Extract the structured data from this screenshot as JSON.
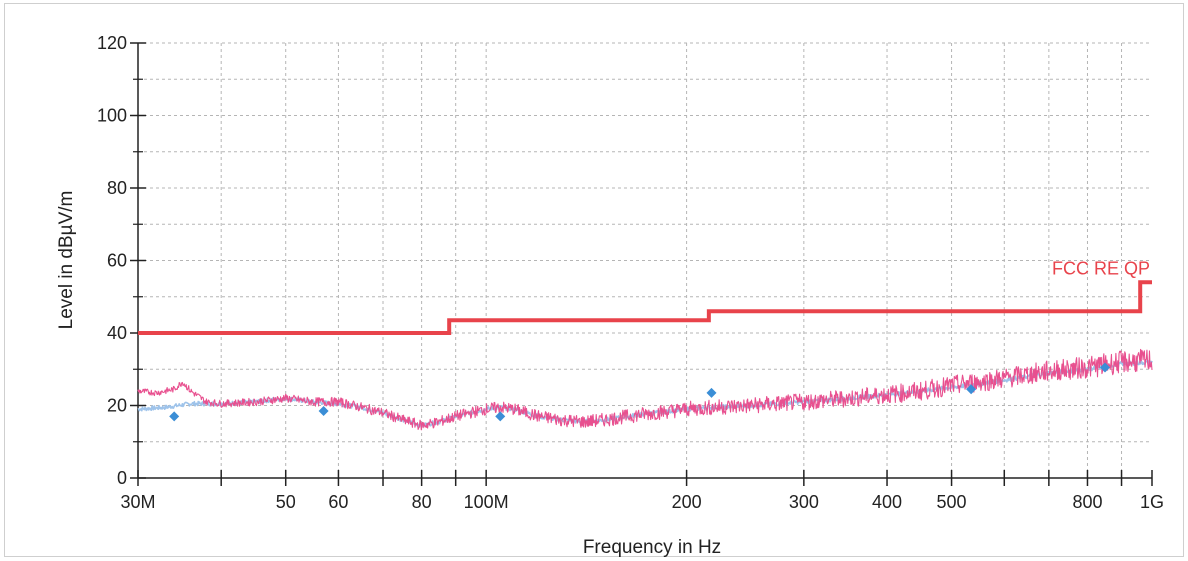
{
  "chart_data": {
    "type": "line",
    "title": "",
    "xlabel": "Frequency in Hz",
    "ylabel": "Level in dBµV/m",
    "xscale": "log",
    "xlim": [
      30000000,
      1000000000
    ],
    "ylim": [
      0,
      120
    ],
    "grid": true,
    "x_tick_labels": [
      {
        "value": 30000000,
        "label": "30M"
      },
      {
        "value": 50000000,
        "label": "50"
      },
      {
        "value": 60000000,
        "label": "60"
      },
      {
        "value": 80000000,
        "label": "80"
      },
      {
        "value": 100000000,
        "label": "100M"
      },
      {
        "value": 200000000,
        "label": "200"
      },
      {
        "value": 300000000,
        "label": "300"
      },
      {
        "value": 400000000,
        "label": "400"
      },
      {
        "value": 500000000,
        "label": "500"
      },
      {
        "value": 800000000,
        "label": "800"
      },
      {
        "value": 1000000000,
        "label": "1G"
      }
    ],
    "x_minor_ticks": [
      40000000,
      70000000,
      90000000,
      600000000,
      700000000,
      900000000
    ],
    "y_ticks": [
      0,
      20,
      40,
      60,
      80,
      100,
      120
    ],
    "y_minor_ticks": [
      10,
      30,
      50,
      70,
      90,
      110
    ],
    "limit_line": {
      "name": "FCC RE QP",
      "color": "#e8434b",
      "points": [
        [
          30000000,
          40
        ],
        [
          88000000,
          40
        ],
        [
          88000000,
          43.5
        ],
        [
          216000000,
          43.5
        ],
        [
          216000000,
          46
        ],
        [
          960000000,
          46
        ],
        [
          960000000,
          54
        ],
        [
          1000000000,
          54
        ]
      ]
    },
    "series": [
      {
        "color": "#9ec3ea",
        "points": [
          [
            30000000,
            19
          ],
          [
            33000000,
            19.5
          ],
          [
            36000000,
            20.5
          ],
          [
            40000000,
            20.5
          ],
          [
            45000000,
            21
          ],
          [
            50000000,
            22
          ],
          [
            55000000,
            21
          ],
          [
            60000000,
            20.5
          ],
          [
            65000000,
            19.5
          ],
          [
            70000000,
            18
          ],
          [
            75000000,
            16
          ],
          [
            80000000,
            14.5
          ],
          [
            85000000,
            15.5
          ],
          [
            90000000,
            17
          ],
          [
            100000000,
            19
          ],
          [
            105000000,
            19.5
          ],
          [
            110000000,
            19
          ],
          [
            120000000,
            17
          ],
          [
            130000000,
            16
          ],
          [
            140000000,
            15.5
          ],
          [
            150000000,
            16
          ],
          [
            170000000,
            17.5
          ],
          [
            200000000,
            19
          ],
          [
            220000000,
            19.5
          ],
          [
            250000000,
            20
          ],
          [
            300000000,
            21
          ],
          [
            350000000,
            22
          ],
          [
            400000000,
            23
          ],
          [
            450000000,
            24
          ],
          [
            500000000,
            25
          ],
          [
            550000000,
            26
          ],
          [
            600000000,
            27
          ],
          [
            650000000,
            28
          ],
          [
            700000000,
            29
          ],
          [
            800000000,
            30
          ],
          [
            900000000,
            31.5
          ],
          [
            1000000000,
            32
          ]
        ]
      },
      {
        "color": "#e8508f",
        "points": [
          [
            30000000,
            24
          ],
          [
            32000000,
            23.5
          ],
          [
            34000000,
            24.5
          ],
          [
            35000000,
            26.5
          ],
          [
            36000000,
            24
          ],
          [
            38000000,
            21
          ],
          [
            40000000,
            20.5
          ],
          [
            45000000,
            21
          ],
          [
            50000000,
            22
          ],
          [
            55000000,
            21
          ],
          [
            60000000,
            21
          ],
          [
            65000000,
            19.5
          ],
          [
            70000000,
            18
          ],
          [
            75000000,
            16
          ],
          [
            80000000,
            14.5
          ],
          [
            85000000,
            15.5
          ],
          [
            90000000,
            17
          ],
          [
            100000000,
            19
          ],
          [
            105000000,
            19.5
          ],
          [
            110000000,
            19
          ],
          [
            120000000,
            17
          ],
          [
            130000000,
            16
          ],
          [
            140000000,
            15.5
          ],
          [
            150000000,
            16
          ],
          [
            170000000,
            17.5
          ],
          [
            200000000,
            19
          ],
          [
            220000000,
            19.5
          ],
          [
            250000000,
            20
          ],
          [
            300000000,
            21
          ],
          [
            350000000,
            22
          ],
          [
            400000000,
            23
          ],
          [
            450000000,
            24
          ],
          [
            500000000,
            25.5
          ],
          [
            550000000,
            26.5
          ],
          [
            600000000,
            27.5
          ],
          [
            650000000,
            28.5
          ],
          [
            700000000,
            29.5
          ],
          [
            800000000,
            30.5
          ],
          [
            900000000,
            32
          ],
          [
            1000000000,
            32.5
          ]
        ]
      }
    ],
    "markers": {
      "color": "#3b8ed6",
      "points": [
        [
          34000000,
          17
        ],
        [
          57000000,
          18.5
        ],
        [
          105000000,
          17
        ],
        [
          218000000,
          23.5
        ],
        [
          535000000,
          24.5
        ],
        [
          850000000,
          30.5
        ]
      ]
    }
  }
}
